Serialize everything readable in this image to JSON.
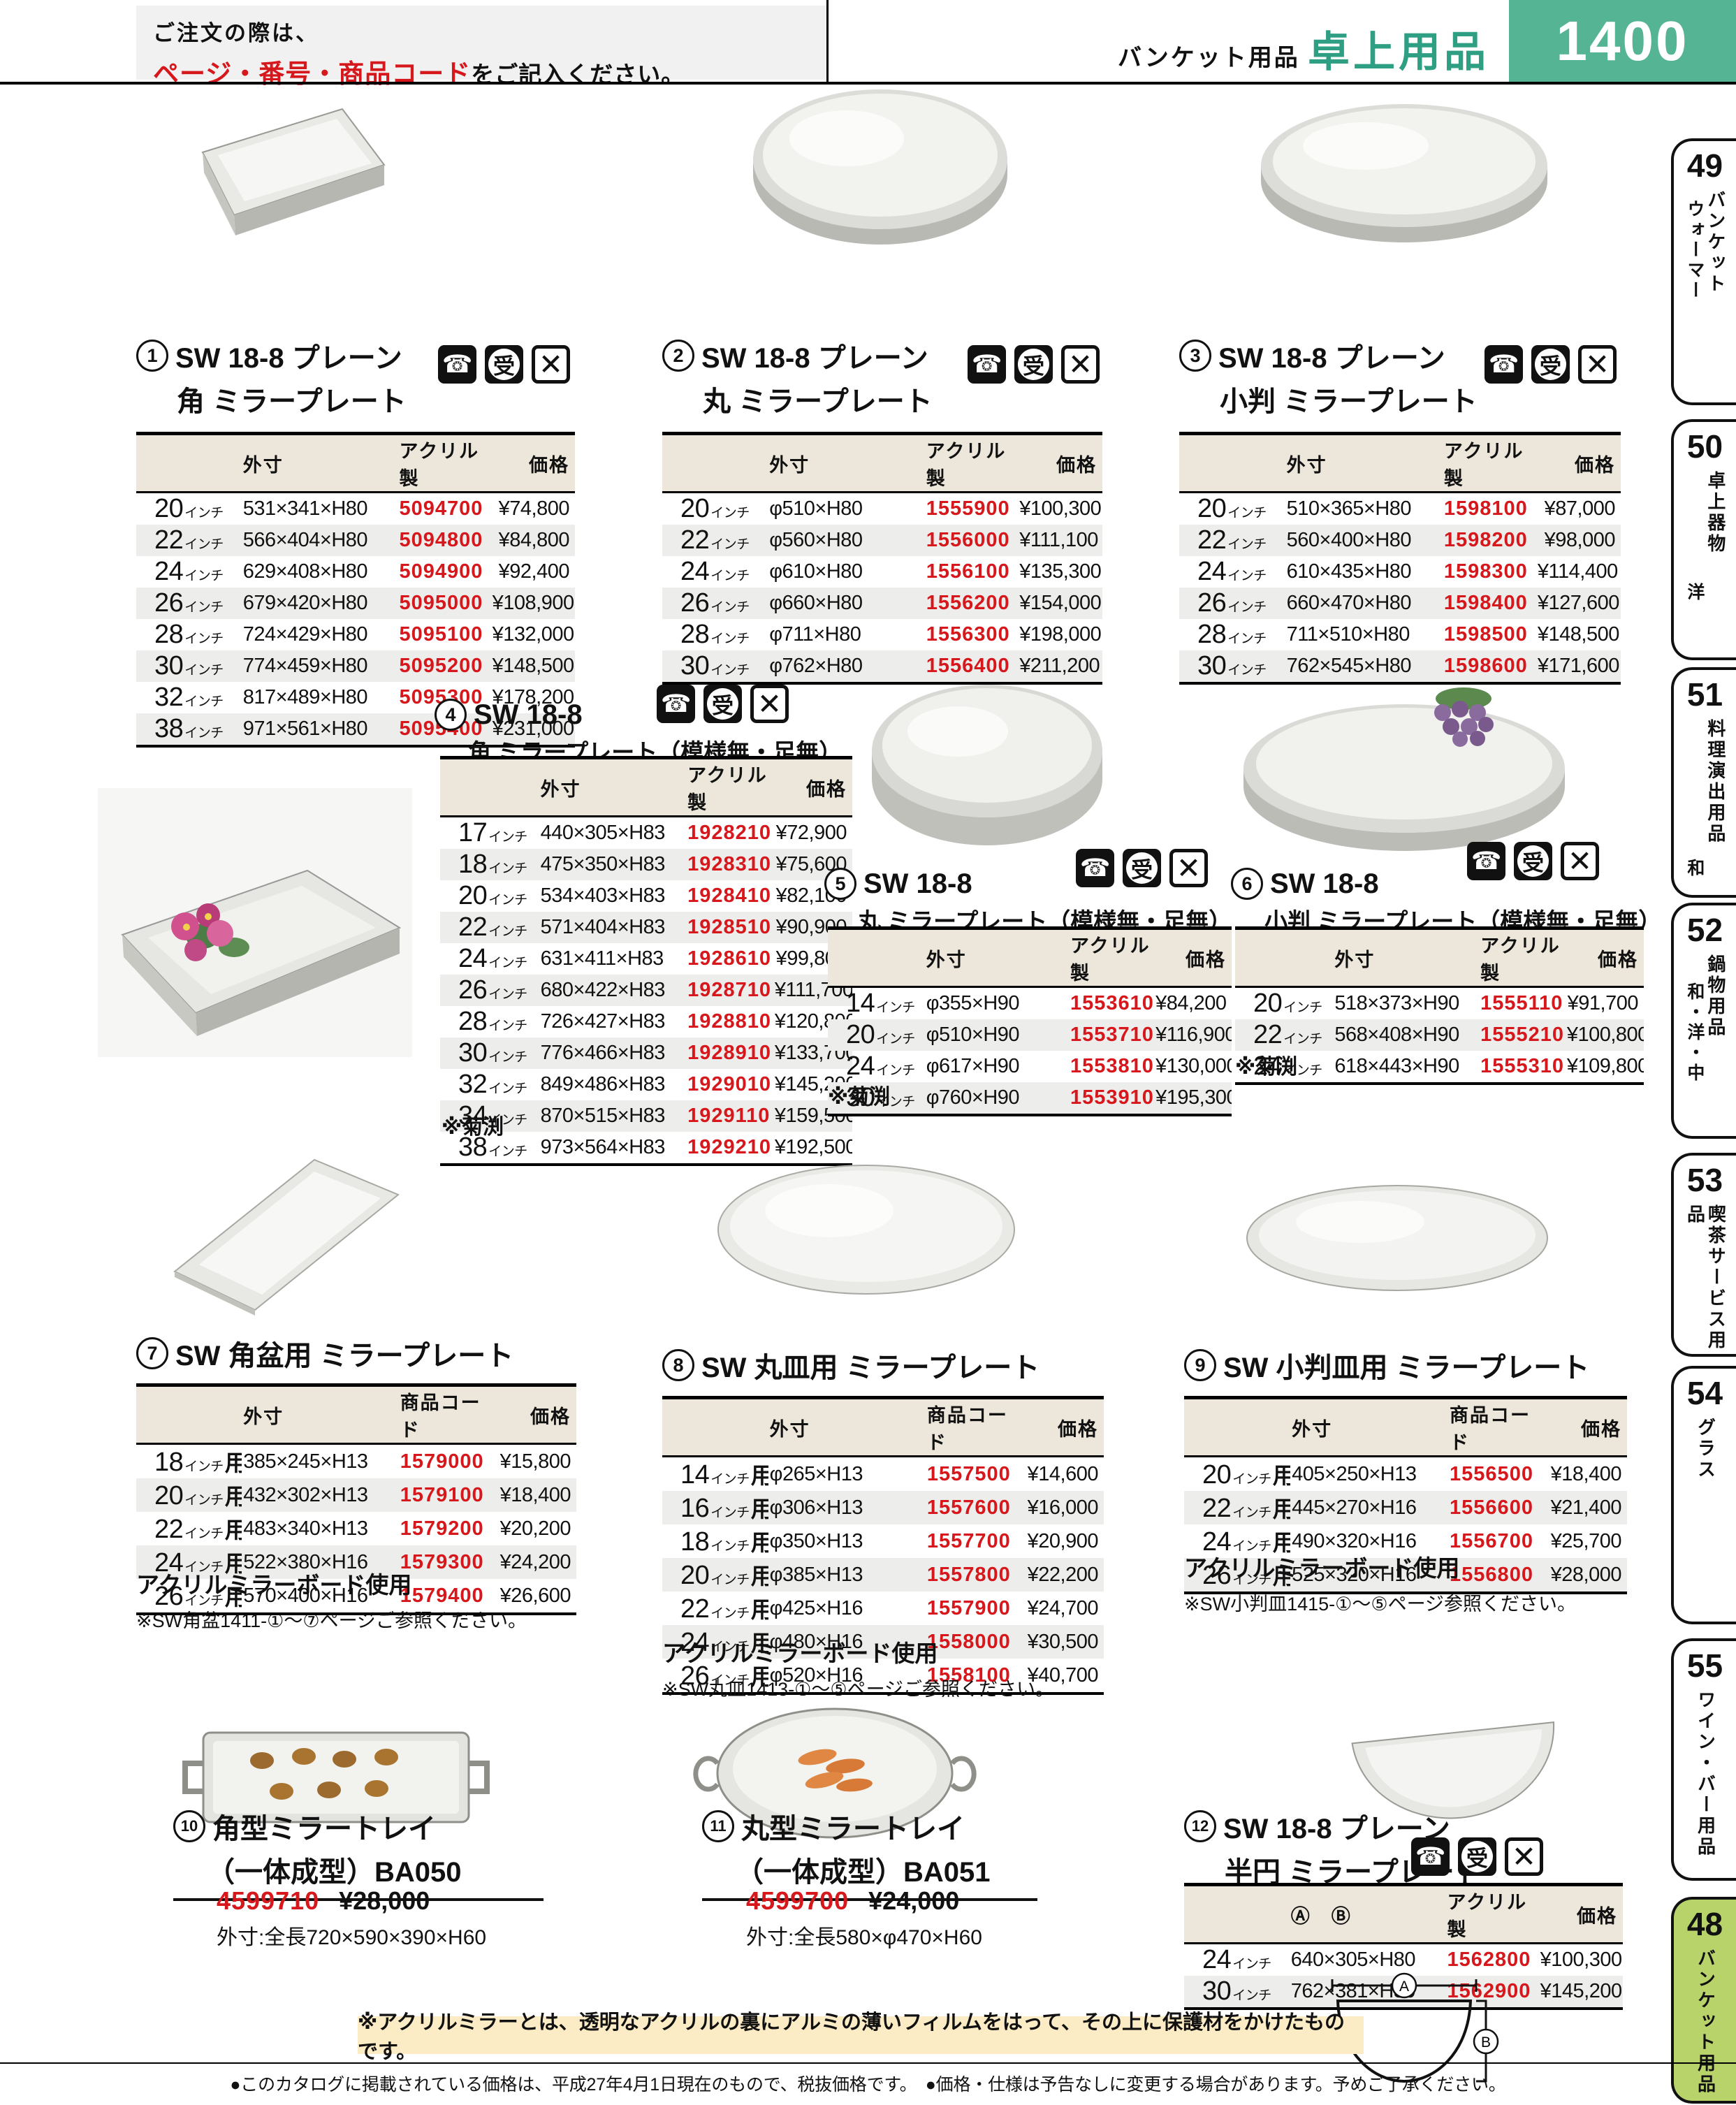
{
  "header": {
    "order_line1": "ご注文の際は、",
    "order_red": "ページ・番号・商品コード",
    "order_tail": "をご記入ください。",
    "category": "バンケット用品",
    "section": "卓上用品",
    "page_number": "1400"
  },
  "colors": {
    "teal": "#55b493",
    "teal_text": "#2f9f83",
    "red": "#d6171c",
    "active_tab_green": "#b9d36b",
    "note_bg": "#fcecc5",
    "table_header_bg": "#ece7da"
  },
  "icons": {
    "phone": "☎",
    "accept": "受",
    "cross": "✕"
  },
  "sidebar": {
    "tabs": [
      {
        "num": "49",
        "label": "バンケット",
        "sub": "ウォーマー"
      },
      {
        "num": "50",
        "label": "卓上器物",
        "sub": "洋"
      },
      {
        "num": "51",
        "label": "料理演出用品",
        "sub": "和"
      },
      {
        "num": "52",
        "label": "鍋物用品",
        "sub": "和・洋・中"
      },
      {
        "num": "53",
        "label": "喫茶サービス用品",
        "sub": ""
      },
      {
        "num": "54",
        "label": "グラス",
        "sub": ""
      },
      {
        "num": "55",
        "label": "ワイン・バー用品",
        "sub": ""
      },
      {
        "num": "48",
        "label": "バンケット用品",
        "sub": ""
      }
    ]
  },
  "products": [
    {
      "num": "1",
      "t1": "SW 18-8 プレーン",
      "t2": "角 ミラープレート",
      "headers": [
        "外寸",
        "アクリル製",
        "価格"
      ],
      "rows": [
        [
          "20インチ",
          "531×341×H80",
          "5094700",
          "¥74,800"
        ],
        [
          "22インチ",
          "566×404×H80",
          "5094800",
          "¥84,800"
        ],
        [
          "24インチ",
          "629×408×H80",
          "5094900",
          "¥92,400"
        ],
        [
          "26インチ",
          "679×420×H80",
          "5095000",
          "¥108,900"
        ],
        [
          "28インチ",
          "724×429×H80",
          "5095100",
          "¥132,000"
        ],
        [
          "30インチ",
          "774×459×H80",
          "5095200",
          "¥148,500"
        ],
        [
          "32インチ",
          "817×489×H80",
          "5095300",
          "¥178,200"
        ],
        [
          "38インチ",
          "971×561×H80",
          "5095400",
          "¥231,000"
        ]
      ]
    },
    {
      "num": "2",
      "t1": "SW 18-8 プレーン",
      "t2": "丸 ミラープレート",
      "headers": [
        "外寸",
        "アクリル製",
        "価格"
      ],
      "rows": [
        [
          "20インチ",
          "φ510×H80",
          "1555900",
          "¥100,300"
        ],
        [
          "22インチ",
          "φ560×H80",
          "1556000",
          "¥111,100"
        ],
        [
          "24インチ",
          "φ610×H80",
          "1556100",
          "¥135,300"
        ],
        [
          "26インチ",
          "φ660×H80",
          "1556200",
          "¥154,000"
        ],
        [
          "28インチ",
          "φ711×H80",
          "1556300",
          "¥198,000"
        ],
        [
          "30インチ",
          "φ762×H80",
          "1556400",
          "¥211,200"
        ]
      ]
    },
    {
      "num": "3",
      "t1": "SW 18-8 プレーン",
      "t2": "小判 ミラープレート",
      "headers": [
        "外寸",
        "アクリル製",
        "価格"
      ],
      "rows": [
        [
          "20インチ",
          "510×365×H80",
          "1598100",
          "¥87,000"
        ],
        [
          "22インチ",
          "560×400×H80",
          "1598200",
          "¥98,000"
        ],
        [
          "24インチ",
          "610×435×H80",
          "1598300",
          "¥114,400"
        ],
        [
          "26インチ",
          "660×470×H80",
          "1598400",
          "¥127,600"
        ],
        [
          "28インチ",
          "711×510×H80",
          "1598500",
          "¥148,500"
        ],
        [
          "30インチ",
          "762×545×H80",
          "1598600",
          "¥171,600"
        ]
      ]
    },
    {
      "num": "4",
      "t1": "SW 18-8",
      "t2": "角 ミラープレート（模様無・足無）",
      "note": "※菊渕",
      "headers": [
        "外寸",
        "アクリル製",
        "価格"
      ],
      "rows": [
        [
          "17インチ",
          "440×305×H83",
          "1928210",
          "¥72,900"
        ],
        [
          "18インチ",
          "475×350×H83",
          "1928310",
          "¥75,600"
        ],
        [
          "20インチ",
          "534×403×H83",
          "1928410",
          "¥82,100"
        ],
        [
          "22インチ",
          "571×404×H83",
          "1928510",
          "¥90,900"
        ],
        [
          "24インチ",
          "631×411×H83",
          "1928610",
          "¥99,800"
        ],
        [
          "26インチ",
          "680×422×H83",
          "1928710",
          "¥111,700"
        ],
        [
          "28インチ",
          "726×427×H83",
          "1928810",
          "¥120,800"
        ],
        [
          "30インチ",
          "776×466×H83",
          "1928910",
          "¥133,700"
        ],
        [
          "32インチ",
          "849×486×H83",
          "1929010",
          "¥145,200"
        ],
        [
          "34インチ",
          "870×515×H83",
          "1929110",
          "¥159,500"
        ],
        [
          "38インチ",
          "973×564×H83",
          "1929210",
          "¥192,500"
        ]
      ]
    },
    {
      "num": "5",
      "t1": "SW 18-8",
      "t2": "丸 ミラープレート（模様無・足無）",
      "note": "※菊渕",
      "headers": [
        "外寸",
        "アクリル製",
        "価格"
      ],
      "rows": [
        [
          "14インチ",
          "φ355×H90",
          "1553610",
          "¥84,200"
        ],
        [
          "20インチ",
          "φ510×H90",
          "1553710",
          "¥116,900"
        ],
        [
          "24インチ",
          "φ617×H90",
          "1553810",
          "¥130,000"
        ],
        [
          "30インチ",
          "φ760×H90",
          "1553910",
          "¥195,300"
        ]
      ]
    },
    {
      "num": "6",
      "t1": "SW 18-8",
      "t2": "小判 ミラープレート（模様無・足無）",
      "note": "※菊渕",
      "headers": [
        "外寸",
        "アクリル製",
        "価格"
      ],
      "rows": [
        [
          "20インチ",
          "518×373×H90",
          "1555110",
          "¥91,700"
        ],
        [
          "22インチ",
          "568×408×H90",
          "1555210",
          "¥100,800"
        ],
        [
          "24インチ",
          "618×443×H90",
          "1555310",
          "¥109,800"
        ]
      ]
    },
    {
      "num": "7",
      "t1": "SW 角盆用 ミラープレート",
      "t2": "",
      "headers": [
        "外寸",
        "商品コード",
        "価格"
      ],
      "note1": "アクリルミラーボード使用",
      "note2": "※SW角盆1411-①～⑦ページご参照ください。",
      "rows": [
        [
          "18インチ用",
          "385×245×H13",
          "1579000",
          "¥15,800"
        ],
        [
          "20インチ用",
          "432×302×H13",
          "1579100",
          "¥18,400"
        ],
        [
          "22インチ用",
          "483×340×H13",
          "1579200",
          "¥20,200"
        ],
        [
          "24インチ用",
          "522×380×H16",
          "1579300",
          "¥24,200"
        ],
        [
          "26インチ用",
          "570×400×H16",
          "1579400",
          "¥26,600"
        ]
      ]
    },
    {
      "num": "8",
      "t1": "SW 丸皿用 ミラープレート",
      "t2": "",
      "headers": [
        "外寸",
        "商品コード",
        "価格"
      ],
      "note1": "アクリルミラーボード使用",
      "note2": "※SW丸皿1413-①～⑤ページご参照ください。",
      "rows": [
        [
          "14インチ用",
          "φ265×H13",
          "1557500",
          "¥14,600"
        ],
        [
          "16インチ用",
          "φ306×H13",
          "1557600",
          "¥16,000"
        ],
        [
          "18インチ用",
          "φ350×H13",
          "1557700",
          "¥20,900"
        ],
        [
          "20インチ用",
          "φ385×H13",
          "1557800",
          "¥22,200"
        ],
        [
          "22インチ用",
          "φ425×H16",
          "1557900",
          "¥24,700"
        ],
        [
          "24インチ用",
          "φ480×H16",
          "1558000",
          "¥30,500"
        ],
        [
          "26インチ用",
          "φ520×H16",
          "1558100",
          "¥40,700"
        ]
      ]
    },
    {
      "num": "9",
      "t1": "SW 小判皿用 ミラープレート",
      "t2": "",
      "headers": [
        "外寸",
        "商品コード",
        "価格"
      ],
      "note1": "アクリルミラーボード使用",
      "note2": "※SW小判皿1415-①～⑤ページ参照ください。",
      "rows": [
        [
          "20インチ用",
          "405×250×H13",
          "1556500",
          "¥18,400"
        ],
        [
          "22インチ用",
          "445×270×H16",
          "1556600",
          "¥21,400"
        ],
        [
          "24インチ用",
          "490×320×H16",
          "1556700",
          "¥25,700"
        ],
        [
          "26インチ用",
          "525×320×H16",
          "1556800",
          "¥28,000"
        ]
      ]
    },
    {
      "num": "10",
      "t1": "角型ミラートレイ",
      "t2": "（一体成型）BA050",
      "code": "4599710",
      "price": "¥28,000",
      "dims": "外寸:全長720×590×390×H60"
    },
    {
      "num": "11",
      "t1": "丸型ミラートレイ",
      "t2": "（一体成型）BA051",
      "code": "4599700",
      "price": "¥24,000",
      "dims": "外寸:全長580×φ470×H60"
    },
    {
      "num": "12",
      "t1": "SW 18-8 プレーン",
      "t2": "半円 ミラープレート",
      "headers": [
        "Ⓐ　Ⓑ",
        "アクリル製",
        "価格"
      ],
      "rows": [
        [
          "24インチ",
          "640×305×H80",
          "1562800",
          "¥100,300"
        ],
        [
          "30インチ",
          "762×381×H80",
          "1562900",
          "¥145,200"
        ]
      ],
      "diagram_labels": [
        "A",
        "B"
      ]
    }
  ],
  "footer": {
    "mirror_note": "※アクリルミラーとは、透明なアクリルの裏にアルミの薄いフィルムをはって、その上に保護材をかけたものです。",
    "line": "●このカタログに掲載されている価格は、平成27年4月1日現在のもので、税抜価格です。　●価格・仕様は予告なしに変更する場合があります。予めご了承ください。"
  }
}
